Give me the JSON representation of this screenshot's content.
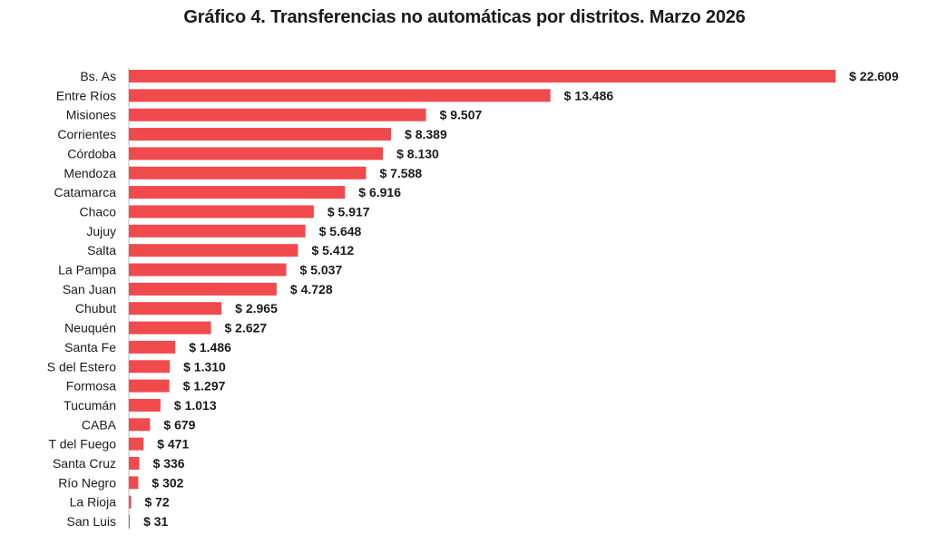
{
  "chart_data": {
    "type": "bar",
    "orientation": "horizontal",
    "title": "Gráfico 4. Transferencias no automáticas por distritos. Marzo 2026",
    "categories": [
      "Bs. As",
      "Entre Ríos",
      "Misiones",
      "Corrientes",
      "Córdoba",
      "Mendoza",
      "Catamarca",
      "Chaco",
      "Jujuy",
      "Salta",
      "La Pampa",
      "San Juan",
      "Chubut",
      "Neuquén",
      "Santa Fe",
      "S del Estero",
      "Formosa",
      "Tucumán",
      "CABA",
      "T del Fuego",
      "Santa Cruz",
      "Río Negro",
      "La Rioja",
      "San Luis"
    ],
    "values": [
      22609,
      13486,
      9507,
      8389,
      8130,
      7588,
      6916,
      5917,
      5648,
      5412,
      5037,
      4728,
      2965,
      2627,
      1486,
      1310,
      1297,
      1013,
      679,
      471,
      336,
      302,
      72,
      31
    ],
    "value_labels": [
      "$ 22.609",
      "$ 13.486",
      "$ 9.507",
      "$ 8.389",
      "$ 8.130",
      "$ 7.588",
      "$ 6.916",
      "$ 5.917",
      "$ 5.648",
      "$ 5.412",
      "$ 5.037",
      "$ 4.728",
      "$ 2.965",
      "$ 2.627",
      "$ 1.486",
      "$ 1.310",
      "$ 1.297",
      "$ 1.013",
      "$ 679",
      "$ 471",
      "$ 336",
      "$ 302",
      "$ 72",
      "$ 31"
    ],
    "xlim": [
      0,
      22609
    ],
    "bar_color": "#f04a4c",
    "axis_color": "#bbbbbb",
    "grid": false,
    "legend": false
  }
}
